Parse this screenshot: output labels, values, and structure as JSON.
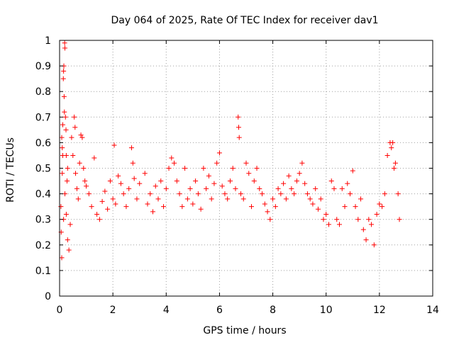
{
  "chart_data": {
    "type": "scatter",
    "title": "Day 064 of 2025, Rate Of TEC Index for receiver dav1",
    "xlabel": "GPS time / hours",
    "ylabel": "ROTI / TECUs",
    "xlim": [
      0,
      14
    ],
    "ylim": [
      0,
      1
    ],
    "x_ticks": [
      0,
      2,
      4,
      6,
      8,
      10,
      12,
      14
    ],
    "x_tick_labels": [
      "0",
      "2",
      "4",
      "6",
      "8",
      "10",
      "12",
      "14"
    ],
    "y_ticks": [
      0,
      0.1,
      0.2,
      0.3,
      0.4,
      0.5,
      0.6,
      0.7,
      0.8,
      0.9,
      1
    ],
    "y_tick_labels": [
      "0",
      "0.1",
      "0.2",
      "0.3",
      "0.4",
      "0.5",
      "0.6",
      "0.7",
      "0.8",
      "0.9",
      "1"
    ],
    "grid": true,
    "marker": "plus",
    "color": "#ff0000",
    "series": [
      {
        "points": [
          [
            0.05,
            0.35
          ],
          [
            0.08,
            0.62
          ],
          [
            0.1,
            0.58
          ],
          [
            0.12,
            0.67
          ],
          [
            0.14,
            0.85
          ],
          [
            0.15,
            0.88
          ],
          [
            0.16,
            0.9
          ],
          [
            0.17,
            0.78
          ],
          [
            0.18,
            0.72
          ],
          [
            0.19,
            0.99
          ],
          [
            0.2,
            0.97
          ],
          [
            0.22,
            0.7
          ],
          [
            0.24,
            0.65
          ],
          [
            0.25,
            0.55
          ],
          [
            0.28,
            0.45
          ],
          [
            0.3,
            0.5
          ],
          [
            0.12,
            0.55
          ],
          [
            0.1,
            0.48
          ],
          [
            0.06,
            0.25
          ],
          [
            0.08,
            0.15
          ],
          [
            0.15,
            0.3
          ],
          [
            0.2,
            0.4
          ],
          [
            0.25,
            0.32
          ],
          [
            0.3,
            0.22
          ],
          [
            0.35,
            0.18
          ],
          [
            0.4,
            0.28
          ],
          [
            0.45,
            0.62
          ],
          [
            0.5,
            0.55
          ],
          [
            0.55,
            0.7
          ],
          [
            0.58,
            0.66
          ],
          [
            0.6,
            0.48
          ],
          [
            0.65,
            0.42
          ],
          [
            0.7,
            0.38
          ],
          [
            0.75,
            0.52
          ],
          [
            0.8,
            0.63
          ],
          [
            0.85,
            0.62
          ],
          [
            0.9,
            0.5
          ],
          [
            0.95,
            0.45
          ],
          [
            1.0,
            0.43
          ],
          [
            1.1,
            0.4
          ],
          [
            1.2,
            0.35
          ],
          [
            1.3,
            0.54
          ],
          [
            1.4,
            0.32
          ],
          [
            1.5,
            0.3
          ],
          [
            1.6,
            0.37
          ],
          [
            1.7,
            0.41
          ],
          [
            1.8,
            0.34
          ],
          [
            1.9,
            0.45
          ],
          [
            2.0,
            0.38
          ],
          [
            2.05,
            0.59
          ],
          [
            2.1,
            0.36
          ],
          [
            2.2,
            0.47
          ],
          [
            2.3,
            0.44
          ],
          [
            2.4,
            0.4
          ],
          [
            2.5,
            0.35
          ],
          [
            2.6,
            0.42
          ],
          [
            2.7,
            0.58
          ],
          [
            2.75,
            0.52
          ],
          [
            2.8,
            0.46
          ],
          [
            2.9,
            0.38
          ],
          [
            3.0,
            0.44
          ],
          [
            3.2,
            0.48
          ],
          [
            3.3,
            0.36
          ],
          [
            3.4,
            0.4
          ],
          [
            3.5,
            0.33
          ],
          [
            3.6,
            0.43
          ],
          [
            3.7,
            0.38
          ],
          [
            3.8,
            0.45
          ],
          [
            3.9,
            0.35
          ],
          [
            4.0,
            0.42
          ],
          [
            4.1,
            0.5
          ],
          [
            4.2,
            0.54
          ],
          [
            4.3,
            0.52
          ],
          [
            4.4,
            0.45
          ],
          [
            4.5,
            0.4
          ],
          [
            4.6,
            0.35
          ],
          [
            4.7,
            0.5
          ],
          [
            4.8,
            0.38
          ],
          [
            4.9,
            0.42
          ],
          [
            5.0,
            0.36
          ],
          [
            5.1,
            0.45
          ],
          [
            5.2,
            0.4
          ],
          [
            5.3,
            0.34
          ],
          [
            5.4,
            0.5
          ],
          [
            5.5,
            0.42
          ],
          [
            5.6,
            0.47
          ],
          [
            5.7,
            0.38
          ],
          [
            5.8,
            0.44
          ],
          [
            5.9,
            0.52
          ],
          [
            6.0,
            0.56
          ],
          [
            6.1,
            0.43
          ],
          [
            6.2,
            0.4
          ],
          [
            6.3,
            0.38
          ],
          [
            6.4,
            0.45
          ],
          [
            6.5,
            0.5
          ],
          [
            6.6,
            0.42
          ],
          [
            6.7,
            0.7
          ],
          [
            6.72,
            0.66
          ],
          [
            6.74,
            0.62
          ],
          [
            6.8,
            0.4
          ],
          [
            6.9,
            0.38
          ],
          [
            7.0,
            0.52
          ],
          [
            7.1,
            0.48
          ],
          [
            7.2,
            0.35
          ],
          [
            7.3,
            0.45
          ],
          [
            7.4,
            0.5
          ],
          [
            7.5,
            0.42
          ],
          [
            7.6,
            0.4
          ],
          [
            7.7,
            0.36
          ],
          [
            7.8,
            0.33
          ],
          [
            7.9,
            0.3
          ],
          [
            8.0,
            0.38
          ],
          [
            8.1,
            0.35
          ],
          [
            8.2,
            0.42
          ],
          [
            8.3,
            0.4
          ],
          [
            8.4,
            0.44
          ],
          [
            8.5,
            0.38
          ],
          [
            8.6,
            0.47
          ],
          [
            8.7,
            0.42
          ],
          [
            8.8,
            0.4
          ],
          [
            8.9,
            0.45
          ],
          [
            9.0,
            0.48
          ],
          [
            9.1,
            0.52
          ],
          [
            9.2,
            0.44
          ],
          [
            9.3,
            0.4
          ],
          [
            9.4,
            0.38
          ],
          [
            9.5,
            0.36
          ],
          [
            9.6,
            0.42
          ],
          [
            9.7,
            0.34
          ],
          [
            9.8,
            0.38
          ],
          [
            9.9,
            0.3
          ],
          [
            10.0,
            0.32
          ],
          [
            10.1,
            0.28
          ],
          [
            10.2,
            0.45
          ],
          [
            10.3,
            0.42
          ],
          [
            10.4,
            0.3
          ],
          [
            10.5,
            0.28
          ],
          [
            10.6,
            0.42
          ],
          [
            10.7,
            0.35
          ],
          [
            10.8,
            0.44
          ],
          [
            10.9,
            0.4
          ],
          [
            11.0,
            0.49
          ],
          [
            11.1,
            0.35
          ],
          [
            11.2,
            0.3
          ],
          [
            11.3,
            0.38
          ],
          [
            11.4,
            0.26
          ],
          [
            11.5,
            0.22
          ],
          [
            11.6,
            0.3
          ],
          [
            11.7,
            0.28
          ],
          [
            11.8,
            0.2
          ],
          [
            11.9,
            0.32
          ],
          [
            12.0,
            0.36
          ],
          [
            12.1,
            0.35
          ],
          [
            12.2,
            0.4
          ],
          [
            12.3,
            0.55
          ],
          [
            12.4,
            0.6
          ],
          [
            12.45,
            0.58
          ],
          [
            12.5,
            0.6
          ],
          [
            12.55,
            0.5
          ],
          [
            12.6,
            0.52
          ],
          [
            12.7,
            0.4
          ],
          [
            12.75,
            0.3
          ]
        ]
      }
    ]
  }
}
